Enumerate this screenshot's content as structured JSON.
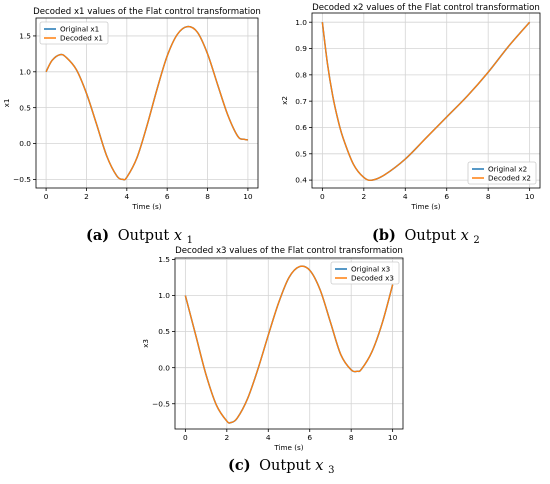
{
  "chart_data": [
    {
      "type": "line",
      "title": "Decoded x1 values of the Flat control transformation",
      "xlabel": "Time (s)",
      "ylabel": "x1",
      "xlim": [
        -0.5,
        10.5
      ],
      "ylim": [
        -0.62,
        1.75
      ],
      "xticks": [
        0,
        2,
        4,
        6,
        8,
        10
      ],
      "yticks": [
        -0.5,
        0.0,
        0.5,
        1.0,
        1.5
      ],
      "ytick_labels": [
        "−0.5",
        "0.0",
        "0.5",
        "1.0",
        "1.5"
      ],
      "grid": true,
      "legend_position": "top-left",
      "series": [
        {
          "name": "Original x1",
          "color": "#1f77b4",
          "x": [
            0,
            0.3,
            0.7,
            1.0,
            1.5,
            2.0,
            2.5,
            3.0,
            3.5,
            3.8,
            4.0,
            4.5,
            5.0,
            5.5,
            6.0,
            6.5,
            7.0,
            7.5,
            8.0,
            8.5,
            9.0,
            9.5,
            9.8,
            10.0
          ],
          "y": [
            1.0,
            1.16,
            1.24,
            1.2,
            1.03,
            0.7,
            0.27,
            -0.17,
            -0.45,
            -0.5,
            -0.47,
            -0.2,
            0.25,
            0.76,
            1.22,
            1.52,
            1.63,
            1.55,
            1.25,
            0.82,
            0.4,
            0.1,
            0.06,
            0.05
          ]
        },
        {
          "name": "Decoded x1",
          "color": "#ff7f0e",
          "x": [
            0,
            0.3,
            0.7,
            1.0,
            1.5,
            2.0,
            2.5,
            3.0,
            3.5,
            3.8,
            4.0,
            4.5,
            5.0,
            5.5,
            6.0,
            6.5,
            7.0,
            7.5,
            8.0,
            8.5,
            9.0,
            9.5,
            9.8,
            10.0
          ],
          "y": [
            1.0,
            1.16,
            1.24,
            1.2,
            1.03,
            0.7,
            0.27,
            -0.17,
            -0.45,
            -0.5,
            -0.47,
            -0.2,
            0.25,
            0.76,
            1.22,
            1.52,
            1.63,
            1.55,
            1.25,
            0.82,
            0.4,
            0.1,
            0.06,
            0.05
          ]
        }
      ]
    },
    {
      "type": "line",
      "title": "Decoded x2 values of the Flat control transformation",
      "xlabel": "Time (s)",
      "ylabel": "x2",
      "xlim": [
        -0.5,
        10.5
      ],
      "ylim": [
        0.37,
        1.035
      ],
      "xticks": [
        0,
        2,
        4,
        6,
        8,
        10
      ],
      "yticks": [
        0.4,
        0.5,
        0.6,
        0.7,
        0.8,
        0.9,
        1.0
      ],
      "ytick_labels": [
        "0.4",
        "0.5",
        "0.6",
        "0.7",
        "0.8",
        "0.9",
        "1.0"
      ],
      "grid": true,
      "legend_position": "bottom-right",
      "series": [
        {
          "name": "Original x2",
          "color": "#1f77b4",
          "x": [
            0,
            0.25,
            0.5,
            0.75,
            1.0,
            1.5,
            2.0,
            2.4,
            3.0,
            4.0,
            5.0,
            6.0,
            7.0,
            8.0,
            9.0,
            10.0
          ],
          "y": [
            1.0,
            0.84,
            0.72,
            0.63,
            0.56,
            0.46,
            0.41,
            0.4,
            0.42,
            0.48,
            0.56,
            0.64,
            0.72,
            0.81,
            0.91,
            1.0
          ]
        },
        {
          "name": "Decoded x2",
          "color": "#ff7f0e",
          "x": [
            0,
            0.25,
            0.5,
            0.75,
            1.0,
            1.5,
            2.0,
            2.4,
            3.0,
            4.0,
            5.0,
            6.0,
            7.0,
            8.0,
            9.0,
            10.0
          ],
          "y": [
            1.0,
            0.84,
            0.72,
            0.63,
            0.56,
            0.46,
            0.41,
            0.4,
            0.42,
            0.48,
            0.56,
            0.64,
            0.72,
            0.81,
            0.91,
            1.0
          ]
        }
      ]
    },
    {
      "type": "line",
      "title": "Decoded x3 values of the Flat control transformation",
      "xlabel": "Time (s)",
      "ylabel": "x3",
      "xlim": [
        -0.5,
        10.5
      ],
      "ylim": [
        -0.85,
        1.52
      ],
      "xticks": [
        0,
        2,
        4,
        6,
        8,
        10
      ],
      "yticks": [
        -0.5,
        0.0,
        0.5,
        1.0,
        1.5
      ],
      "ytick_labels": [
        "−0.5",
        "0.0",
        "0.5",
        "1.0",
        "1.5"
      ],
      "grid": true,
      "legend_position": "top-right",
      "series": [
        {
          "name": "Original x3",
          "color": "#1f77b4",
          "x": [
            0,
            0.5,
            1.0,
            1.5,
            2.0,
            2.2,
            2.5,
            3.0,
            3.5,
            4.0,
            4.5,
            5.0,
            5.5,
            6.0,
            6.5,
            7.0,
            7.5,
            8.0,
            8.3,
            8.5,
            9.0,
            9.5,
            10.0
          ],
          "y": [
            1.0,
            0.45,
            -0.1,
            -0.52,
            -0.74,
            -0.76,
            -0.7,
            -0.43,
            -0.02,
            0.45,
            0.9,
            1.25,
            1.4,
            1.35,
            1.08,
            0.63,
            0.18,
            -0.03,
            -0.05,
            -0.02,
            0.22,
            0.62,
            1.15
          ]
        },
        {
          "name": "Decoded x3",
          "color": "#ff7f0e",
          "x": [
            0,
            0.5,
            1.0,
            1.5,
            2.0,
            2.2,
            2.5,
            3.0,
            3.5,
            4.0,
            4.5,
            5.0,
            5.5,
            6.0,
            6.5,
            7.0,
            7.5,
            8.0,
            8.3,
            8.5,
            9.0,
            9.5,
            10.0
          ],
          "y": [
            1.0,
            0.45,
            -0.1,
            -0.52,
            -0.74,
            -0.76,
            -0.7,
            -0.43,
            -0.02,
            0.45,
            0.9,
            1.25,
            1.4,
            1.35,
            1.08,
            0.63,
            0.18,
            -0.03,
            -0.05,
            -0.02,
            0.22,
            0.62,
            1.15
          ]
        }
      ]
    }
  ],
  "captions": [
    {
      "label": "(a)",
      "text": "Output ",
      "var": "x",
      "sub": "1"
    },
    {
      "label": "(b)",
      "text": "Output ",
      "var": "x",
      "sub": "2"
    },
    {
      "label": "(c)",
      "text": "Output ",
      "var": "x",
      "sub": "3"
    }
  ]
}
